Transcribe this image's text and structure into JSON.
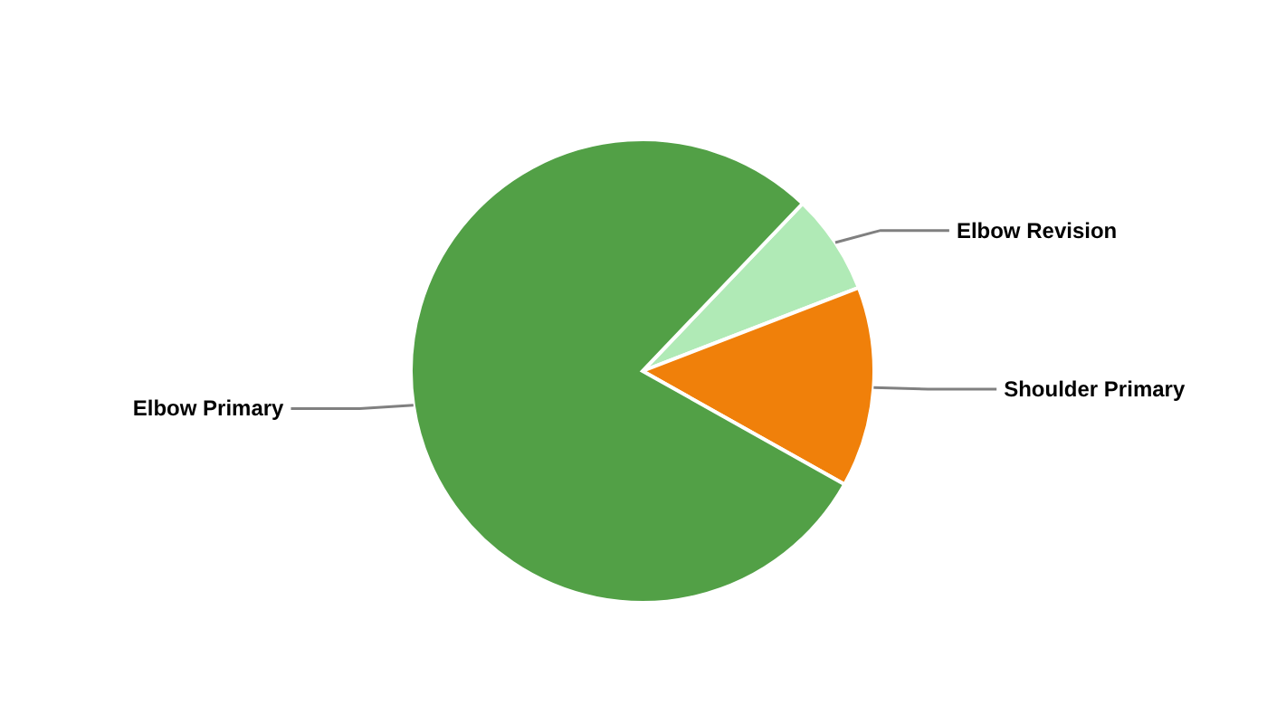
{
  "chart_data": {
    "type": "pie",
    "categories": [
      "Elbow Revision",
      "Shoulder Primary",
      "Elbow Primary"
    ],
    "values": [
      7,
      14,
      79
    ],
    "colors": [
      "#b0eab6",
      "#f0800a",
      "#52a046"
    ],
    "legend": false
  }
}
